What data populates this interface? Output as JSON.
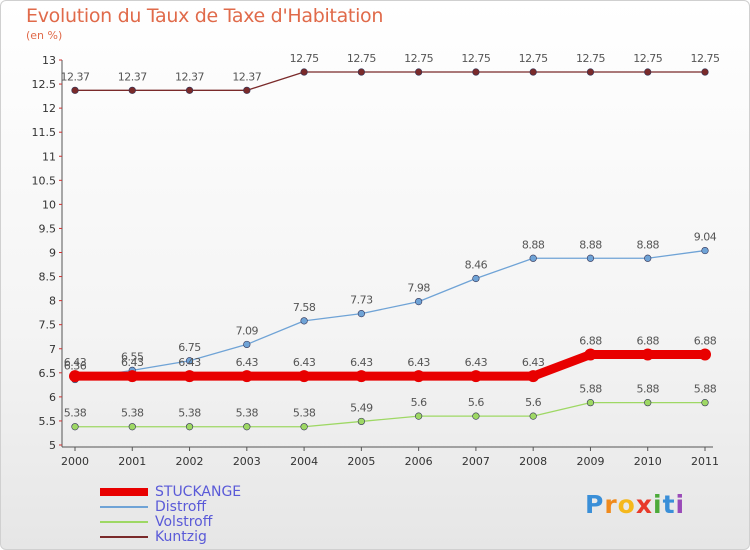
{
  "chart_data": {
    "type": "line",
    "title": "Evolution du Taux de Taxe d'Habitation",
    "subtitle": "(en %)",
    "categories": [
      "2000",
      "2001",
      "2002",
      "2003",
      "2004",
      "2005",
      "2006",
      "2007",
      "2008",
      "2009",
      "2010",
      "2011"
    ],
    "ylim": [
      5,
      13
    ],
    "ytick_step": 0.5,
    "grid": false,
    "legend_position": "bottom-left",
    "series": [
      {
        "name": "STUCKANGE",
        "color": "#e80000",
        "values": [
          6.43,
          6.43,
          6.43,
          6.43,
          6.43,
          6.43,
          6.43,
          6.43,
          6.43,
          6.88,
          6.88,
          6.88
        ],
        "labels": [
          "6.43",
          "6.43",
          "6.43",
          "6.43",
          "6.43",
          "6.43",
          "6.43",
          "6.43",
          "6.43",
          "6.88",
          "6.88",
          "6.88"
        ]
      },
      {
        "name": "Distroff",
        "color": "#6fa3d6",
        "values": [
          6.36,
          6.55,
          6.75,
          7.09,
          7.58,
          7.73,
          7.98,
          8.46,
          8.88,
          8.88,
          8.88,
          9.04
        ],
        "labels": [
          "6.36",
          "6.55",
          "6.75",
          "7.09",
          "7.58",
          "7.73",
          "7.98",
          "8.46",
          "8.88",
          "8.88",
          "8.88",
          "9.04"
        ]
      },
      {
        "name": "Volstroff",
        "color": "#9ed864",
        "values": [
          5.38,
          5.38,
          5.38,
          5.38,
          5.38,
          5.49,
          5.6,
          5.6,
          5.6,
          5.88,
          5.88,
          5.88
        ],
        "labels": [
          "5.38",
          "5.38",
          "5.38",
          "5.38",
          "5.38",
          "5.49",
          "5.6",
          "5.6",
          "5.6",
          "5.88",
          "5.88",
          "5.88"
        ]
      },
      {
        "name": "Kuntzig",
        "color": "#7a2a2a",
        "values": [
          12.37,
          12.37,
          12.37,
          12.37,
          12.75,
          12.75,
          12.75,
          12.75,
          12.75,
          12.75,
          12.75,
          12.75
        ],
        "labels": [
          "12.37",
          "12.37",
          "12.37",
          "12.37",
          "12.75",
          "12.75",
          "12.75",
          "12.75",
          "12.75",
          "12.75",
          "12.75",
          "12.75"
        ]
      }
    ]
  },
  "logo": {
    "letters": [
      "P",
      "r",
      "o",
      "x",
      "i",
      "t",
      "i"
    ],
    "colors": [
      "#3a8fd8",
      "#f08a1c",
      "#f5b81c",
      "#e83a2a",
      "#4caa3a",
      "#3a8fd8",
      "#9a4ab8"
    ]
  }
}
